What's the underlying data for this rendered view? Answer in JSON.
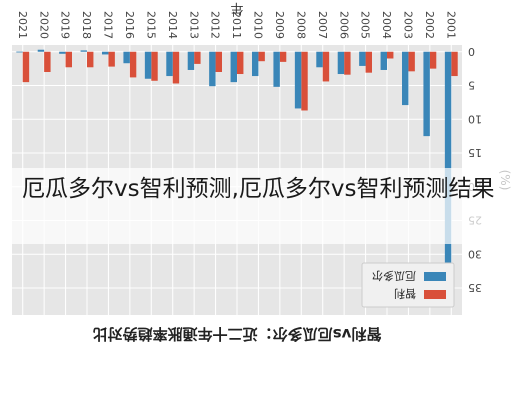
{
  "chart_data": {
    "type": "bar",
    "title": "智利vs厄瓜多尔：近二十年通胀率趋势对比",
    "xlabel": "年",
    "ylabel": "(%)",
    "rotated_180": true,
    "categories": [
      "2001",
      "2002",
      "2003",
      "2004",
      "2005",
      "2006",
      "2007",
      "2008",
      "2009",
      "2010",
      "2011",
      "2012",
      "2013",
      "2014",
      "2015",
      "2016",
      "2017",
      "2018",
      "2019",
      "2020",
      "2021"
    ],
    "series": [
      {
        "name": "智利",
        "color": "#d9503a",
        "values": [
          3.6,
          2.5,
          2.9,
          1.0,
          3.1,
          3.4,
          4.4,
          8.7,
          1.5,
          1.4,
          3.3,
          3.0,
          1.8,
          4.7,
          4.3,
          3.8,
          2.2,
          2.3,
          2.3,
          3.0,
          4.5
        ]
      },
      {
        "name": "厄瓜多尔",
        "color": "#3a86b8",
        "values": [
          37.7,
          12.5,
          7.9,
          2.7,
          2.1,
          3.3,
          2.3,
          8.4,
          5.2,
          3.6,
          4.5,
          5.1,
          2.7,
          3.6,
          4.0,
          1.7,
          0.4,
          -0.2,
          0.3,
          -0.3,
          0.1
        ]
      }
    ],
    "ylim": [
      -1,
      39
    ],
    "yticks": [
      0,
      5,
      10,
      15,
      20,
      25,
      30,
      35
    ],
    "grid": true,
    "legend_position": "top-right"
  },
  "overlay": {
    "text": "厄瓜多尔vs智利预测,厄瓜多尔vs智利预测结果"
  }
}
